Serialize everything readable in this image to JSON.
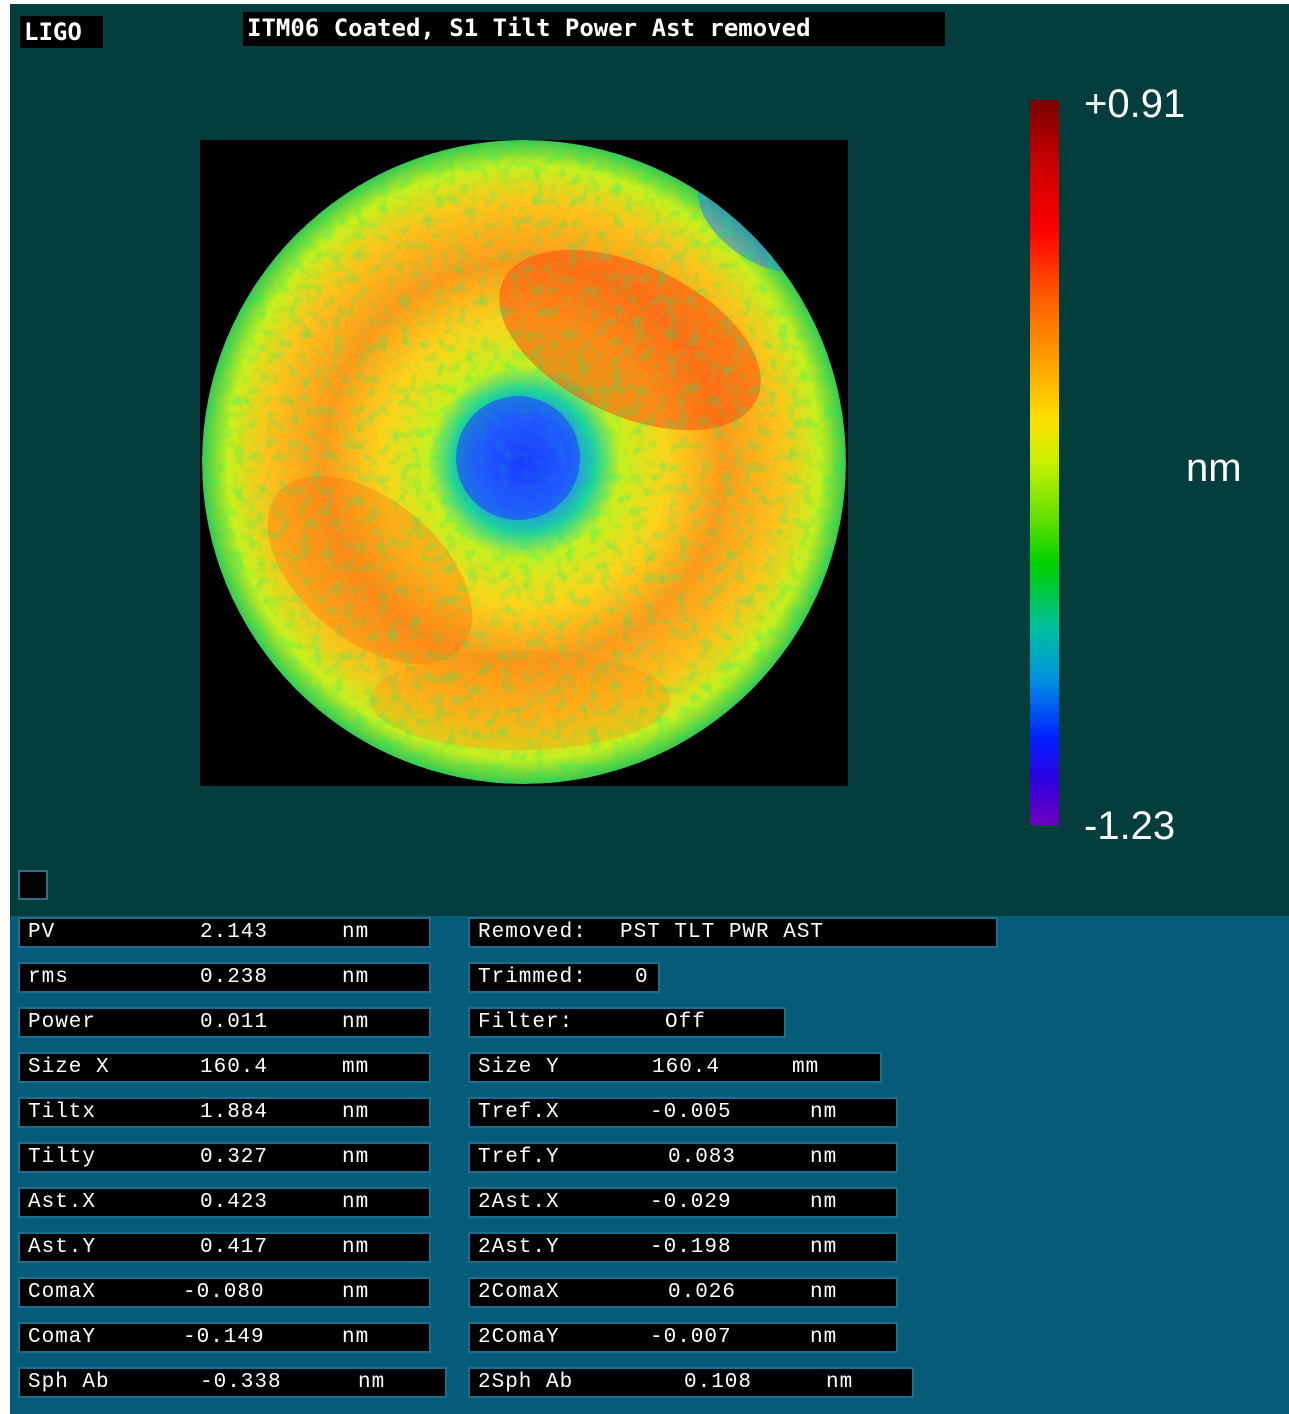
{
  "header": {
    "logo": "LIGO",
    "title": "ITM06 Coated, S1 Tilt Power Ast removed"
  },
  "colorbar": {
    "max_label": "+0.91",
    "min_label": "-1.23",
    "unit": "nm",
    "colors": [
      "#7a0000",
      "#ff0000",
      "#ffa000",
      "#ffe000",
      "#00d000",
      "#0090e0",
      "#0020ff",
      "#7000c0"
    ]
  },
  "map": {
    "background_color": "#000000",
    "description_colors": {
      "center": "#1f60ff",
      "body": "#ffd21a",
      "hot": "#ff5a10"
    }
  },
  "left_stats": [
    {
      "label": "PV",
      "value": "2.143",
      "unit": "nm"
    },
    {
      "label": "rms",
      "value": "0.238",
      "unit": "nm"
    },
    {
      "label": "Power",
      "value": "0.011",
      "unit": "nm"
    },
    {
      "label": "Size X",
      "value": "160.4",
      "unit": "mm"
    },
    {
      "label": "Tiltx",
      "value": "1.884",
      "unit": "nm"
    },
    {
      "label": "Tilty",
      "value": "0.327",
      "unit": "nm"
    },
    {
      "label": "Ast.X",
      "value": "0.423",
      "unit": "nm"
    },
    {
      "label": "Ast.Y",
      "value": "0.417",
      "unit": "nm"
    },
    {
      "label": "ComaX",
      "value": "-0.080",
      "unit": "nm"
    },
    {
      "label": "ComaY",
      "value": "-0.149",
      "unit": "nm"
    },
    {
      "label": "Sph Ab",
      "value": "-0.338",
      "unit": "nm"
    }
  ],
  "info": {
    "removed_label": "Removed:",
    "removed_value": "PST TLT PWR AST",
    "trimmed_label": "Trimmed:",
    "trimmed_value": "0",
    "filter_label": "Filter:",
    "filter_value": "Off"
  },
  "right_stats": [
    {
      "label": "Size Y",
      "value": "160.4",
      "unit": "mm"
    },
    {
      "label": "Tref.X",
      "value": "-0.005",
      "unit": "nm"
    },
    {
      "label": "Tref.Y",
      "value": "0.083",
      "unit": "nm"
    },
    {
      "label": "2Ast.X",
      "value": "-0.029",
      "unit": "nm"
    },
    {
      "label": "2Ast.Y",
      "value": "-0.198",
      "unit": "nm"
    },
    {
      "label": "2ComaX",
      "value": "0.026",
      "unit": "nm"
    },
    {
      "label": "2ComaY",
      "value": "-0.007",
      "unit": "nm"
    },
    {
      "label": "2Sph Ab",
      "value": "0.108",
      "unit": "nm"
    }
  ]
}
